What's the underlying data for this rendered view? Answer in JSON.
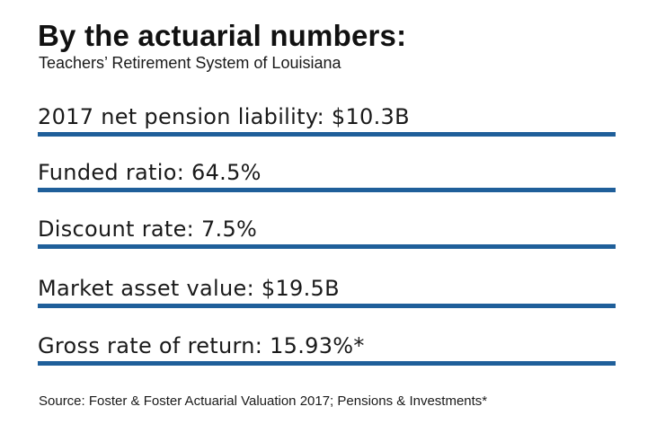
{
  "header": {
    "title": "By the actuarial numbers:",
    "subtitle": "Teachers’ Retirement System of Louisiana"
  },
  "stats": [
    {
      "label": "2017 net pension liability: $10.3B"
    },
    {
      "label": "Funded ratio: 64.5%"
    },
    {
      "label": "Discount rate: 7.5%"
    },
    {
      "label": "Market asset value: $19.5B"
    },
    {
      "label": "Gross rate of return: 15.93%*"
    }
  ],
  "footer": {
    "source": "Source: Foster & Foster Actuarial Valuation 2017; Pensions & Investments*"
  },
  "colors": {
    "rule": "#1f5f9a",
    "text": "#1a1a1a",
    "background": "#ffffff"
  }
}
